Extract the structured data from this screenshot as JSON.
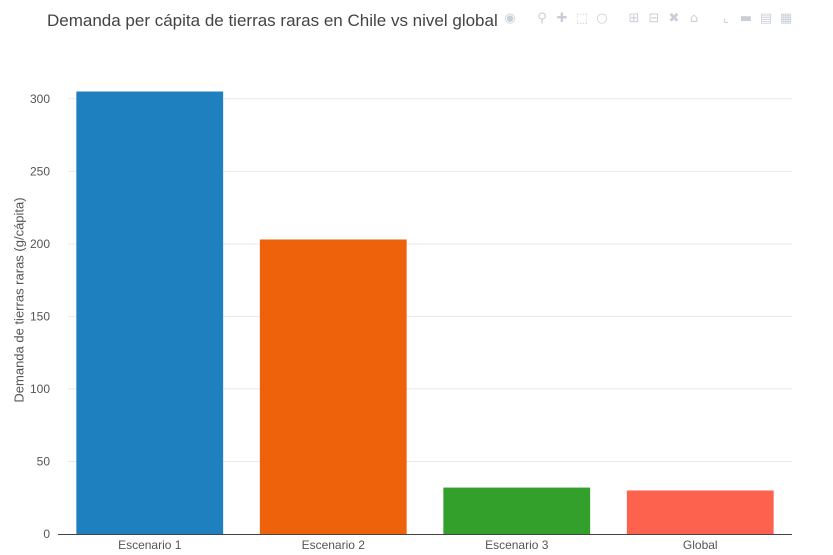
{
  "chart_data": {
    "type": "bar",
    "title": "Demanda per cápita de tierras raras en Chile vs nivel global",
    "xlabel": "",
    "ylabel": "Demanda de tierras raras (g/cápita)",
    "categories": [
      "Escenario 1",
      "Escenario 2",
      "Escenario 3",
      "Global"
    ],
    "values": [
      305,
      203,
      32,
      30
    ],
    "bar_colors": [
      "#1f80c0",
      "#ef620c",
      "#33a02c",
      "#fc624d"
    ],
    "yticks": [
      0,
      50,
      100,
      150,
      200,
      250,
      300
    ],
    "ylim": [
      0,
      315
    ],
    "grid": true,
    "legend": "none"
  },
  "modebar": {
    "icons": [
      "camera-icon",
      "zoom-icon",
      "pan-icon",
      "box-select-icon",
      "lasso-icon",
      "zoom-in-icon",
      "zoom-out-icon",
      "autoscale-icon",
      "reset-axes-icon",
      "spike-lines-icon",
      "hover-closest-icon",
      "hover-compare-icon",
      "plotly-logo-icon"
    ]
  }
}
